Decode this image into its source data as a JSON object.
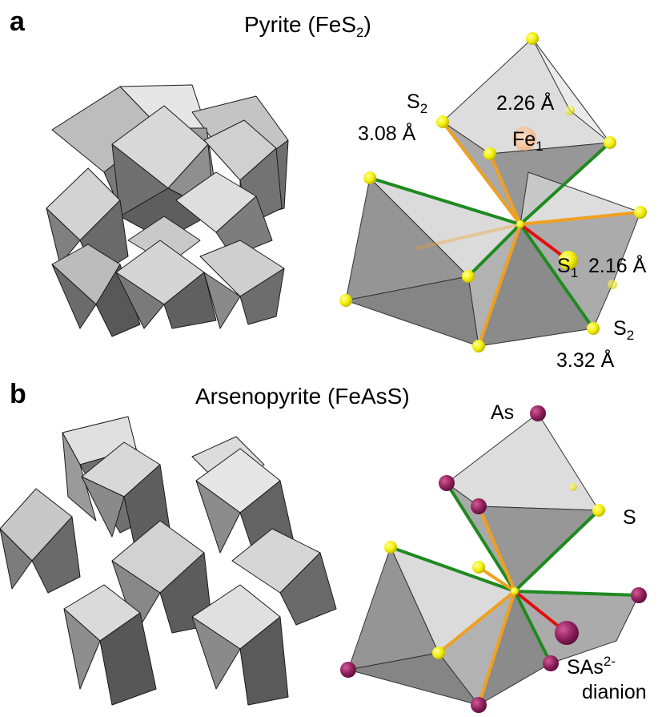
{
  "panel_a": {
    "letter": "a",
    "title_main": "Pyrite (FeS",
    "title_sub": "2",
    "title_end": ")",
    "labels": {
      "s2_top": "S",
      "s2_top_sub": "2",
      "dist_top_left": "3.08 Å",
      "dist_top_right": "2.26 Å",
      "fe1": "Fe",
      "fe1_sub": "1",
      "s1": "S",
      "s1_sub": "1",
      "dist_s1": "2.16 Å",
      "s2_bottom": "S",
      "s2_bottom_sub": "2",
      "dist_bottom": "3.32 Å"
    }
  },
  "panel_b": {
    "letter": "b",
    "title": "Arsenopyrite (FeAsS)",
    "labels": {
      "as": "As",
      "s": "S",
      "dianion_main": "SAs",
      "dianion_sup": "2-",
      "dianion_word": "dianion"
    }
  },
  "colors": {
    "polyhedron_light": "#dcdcdc",
    "polyhedron_mid": "#a9a9a9",
    "polyhedron_dark": "#6b6b6b",
    "sulfur": "#f2ee00",
    "arsenic": "#8e1f5c",
    "iron": "#f4b98a",
    "bond_green": "#1f8a1f",
    "bond_orange": "#f0a020",
    "bond_red": "#e01010"
  }
}
